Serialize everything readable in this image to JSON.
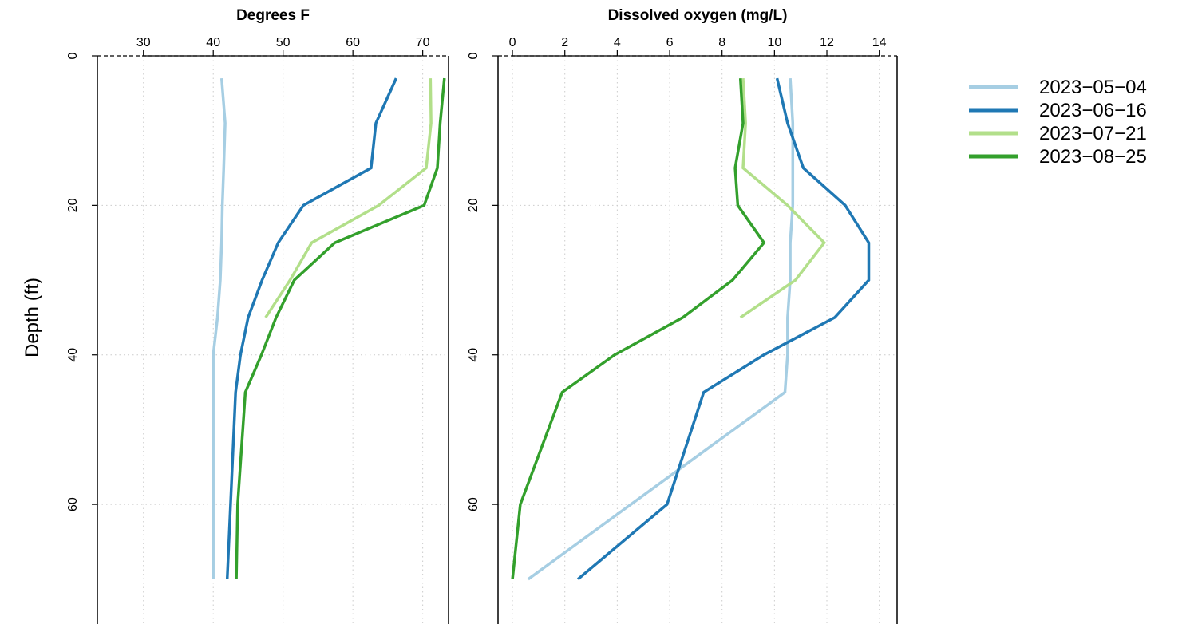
{
  "ylabel": "Depth (ft)",
  "legend": {
    "position": "top-right",
    "entries": [
      {
        "label": "2023−05−04",
        "color": "#a6cee3"
      },
      {
        "label": "2023−06−16",
        "color": "#1f78b4"
      },
      {
        "label": "2023−07−21",
        "color": "#b2df8a"
      },
      {
        "label": "2023−08−25",
        "color": "#33a02c"
      }
    ]
  },
  "chart_data": [
    {
      "type": "line",
      "title": "Degrees F",
      "xlabel": "",
      "ylabel": "Depth (ft)",
      "xlim": [
        23.4,
        73.7
      ],
      "ylim": [
        0,
        76
      ],
      "y_reversed": true,
      "x_axis_position": "top",
      "reference_line_y": 0,
      "grid": true,
      "xticks": [
        30,
        40,
        50,
        60,
        70
      ],
      "yticks": [
        0,
        20,
        40,
        60
      ],
      "series": [
        {
          "name": "2023−05−04",
          "color": "#a6cee3",
          "x": [
            41.2,
            41.7,
            41.5,
            41.3,
            41.2,
            41.0,
            40.6,
            40.0,
            40.0,
            40.0
          ],
          "y": [
            3,
            9,
            15,
            20,
            25,
            30,
            35,
            40,
            45,
            70
          ]
        },
        {
          "name": "2023−06−16",
          "color": "#1f78b4",
          "x": [
            66.2,
            63.3,
            62.6,
            52.9,
            49.3,
            47.0,
            45.0,
            43.9,
            43.2,
            42.0
          ],
          "y": [
            3,
            9,
            15,
            20,
            25,
            30,
            35,
            40,
            45,
            70
          ]
        },
        {
          "name": "2023−07−21",
          "color": "#b2df8a",
          "x": [
            71.1,
            71.2,
            70.5,
            63.7,
            54.1,
            51.0,
            47.5
          ],
          "y": [
            3,
            9,
            15,
            20,
            25,
            30,
            35
          ]
        },
        {
          "name": "2023−08−25",
          "color": "#33a02c",
          "x": [
            73.1,
            72.5,
            72.1,
            70.2,
            57.4,
            51.6,
            49.0,
            46.9,
            44.6,
            43.5,
            43.3
          ],
          "y": [
            3,
            9,
            15,
            20,
            25,
            30,
            35,
            40,
            45,
            60,
            70
          ]
        }
      ]
    },
    {
      "type": "line",
      "title": "Dissolved oxygen (mg/L)",
      "xlabel": "",
      "ylabel": "",
      "xlim": [
        -0.55,
        14.68
      ],
      "ylim": [
        0,
        76
      ],
      "y_reversed": true,
      "x_axis_position": "top",
      "reference_line_y": 0,
      "grid": true,
      "xticks": [
        0,
        2,
        4,
        6,
        8,
        10,
        12,
        14
      ],
      "yticks": [
        0,
        20,
        40,
        60
      ],
      "series": [
        {
          "name": "2023−05−04",
          "color": "#a6cee3",
          "x": [
            10.6,
            10.7,
            10.7,
            10.7,
            10.6,
            10.6,
            10.5,
            10.5,
            10.4,
            0.6
          ],
          "y": [
            3,
            9,
            15,
            20,
            25,
            30,
            35,
            40,
            45,
            70
          ]
        },
        {
          "name": "2023−06−16",
          "color": "#1f78b4",
          "x": [
            10.1,
            10.5,
            11.1,
            12.7,
            13.6,
            13.6,
            12.3,
            9.6,
            7.3,
            5.9,
            2.5
          ],
          "y": [
            3,
            9,
            15,
            20,
            25,
            30,
            35,
            40,
            45,
            60,
            70
          ]
        },
        {
          "name": "2023−07−21",
          "color": "#b2df8a",
          "x": [
            8.8,
            8.9,
            8.8,
            10.5,
            11.9,
            10.8,
            8.7
          ],
          "y": [
            3,
            9,
            15,
            20,
            25,
            30,
            35
          ]
        },
        {
          "name": "2023−08−25",
          "color": "#33a02c",
          "x": [
            8.7,
            8.8,
            8.5,
            8.6,
            9.6,
            8.4,
            6.5,
            3.9,
            1.9,
            0.3,
            0.0
          ],
          "y": [
            3,
            9,
            15,
            20,
            25,
            30,
            35,
            40,
            45,
            60,
            70
          ]
        }
      ]
    }
  ]
}
